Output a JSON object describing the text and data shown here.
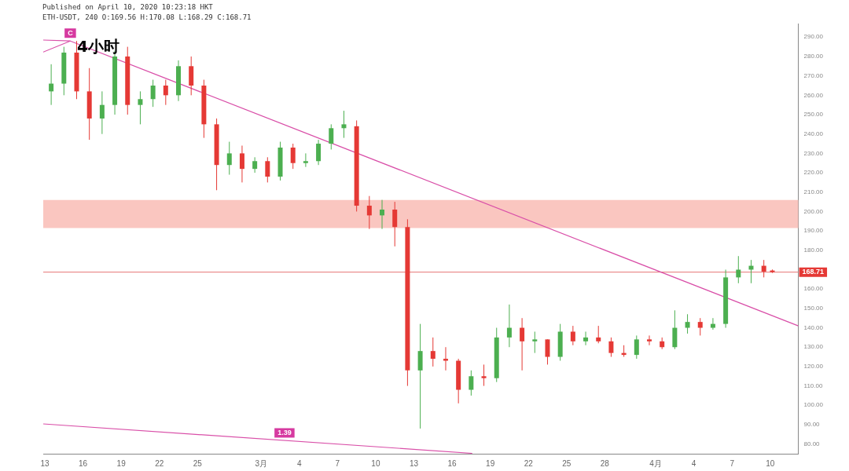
{
  "chart_data": {
    "type": "candlestick",
    "title": "4小时",
    "subtitle": "ETH-USDT, 240 O:169.56 H:170.08 L:168.29 C:168.71",
    "annotations": [
      "Published on April 10, 2020 10:23:18 HKT",
      {
        "text": "C",
        "x": "2020-02-15T00:00",
        "y": 288
      },
      {
        "text": "1.39",
        "x": "2020-03-02T20:00",
        "y": 81.7
      }
    ],
    "x": [
      "2020-02-13T12:00",
      "2020-02-14T12:00",
      "2020-02-15T12:00",
      "2020-02-16T12:00",
      "2020-02-17T12:00",
      "2020-02-18T12:00",
      "2020-02-19T12:00",
      "2020-02-20T12:00",
      "2020-02-21T12:00",
      "2020-02-22T12:00",
      "2020-02-23T12:00",
      "2020-02-24T12:00",
      "2020-02-25T12:00",
      "2020-02-26T12:00",
      "2020-02-27T12:00",
      "2020-02-28T12:00",
      "2020-02-29T12:00",
      "2020-03-01T12:00",
      "2020-03-02T12:00",
      "2020-03-03T12:00",
      "2020-03-04T12:00",
      "2020-03-05T12:00",
      "2020-03-06T12:00",
      "2020-03-07T12:00",
      "2020-03-08T12:00",
      "2020-03-09T12:00",
      "2020-03-10T12:00",
      "2020-03-11T12:00",
      "2020-03-12T12:00",
      "2020-03-13T12:00",
      "2020-03-14T12:00",
      "2020-03-15T12:00",
      "2020-03-16T12:00",
      "2020-03-17T12:00",
      "2020-03-18T12:00",
      "2020-03-19T12:00",
      "2020-03-20T12:00",
      "2020-03-21T12:00",
      "2020-03-22T12:00",
      "2020-03-23T12:00",
      "2020-03-24T12:00",
      "2020-03-25T12:00",
      "2020-03-26T12:00",
      "2020-03-27T12:00",
      "2020-03-28T12:00",
      "2020-03-29T12:00",
      "2020-03-30T12:00",
      "2020-03-31T12:00",
      "2020-04-01T12:00",
      "2020-04-02T12:00",
      "2020-04-03T12:00",
      "2020-04-04T12:00",
      "2020-04-05T12:00",
      "2020-04-06T12:00",
      "2020-04-07T12:00",
      "2020-04-08T12:00",
      "2020-04-09T12:00",
      "2020-04-10T04:00"
    ],
    "ohlc": [
      [
        262,
        276,
        255,
        266
      ],
      [
        266,
        285,
        260,
        282
      ],
      [
        282,
        288,
        258,
        262
      ],
      [
        262,
        274,
        237,
        248
      ],
      [
        248,
        262,
        240,
        255
      ],
      [
        255,
        283,
        250,
        280
      ],
      [
        280,
        285,
        250,
        255
      ],
      [
        255,
        262,
        245,
        258
      ],
      [
        258,
        268,
        254,
        265
      ],
      [
        265,
        268,
        255,
        260
      ],
      [
        260,
        278,
        257,
        275
      ],
      [
        275,
        280,
        260,
        265
      ],
      [
        265,
        268,
        238,
        245
      ],
      [
        245,
        248,
        211,
        224
      ],
      [
        224,
        236,
        219,
        230
      ],
      [
        230,
        234,
        215,
        222
      ],
      [
        222,
        228,
        220,
        226
      ],
      [
        226,
        228,
        215,
        218
      ],
      [
        218,
        236,
        216,
        233
      ],
      [
        233,
        235,
        222,
        225
      ],
      [
        225,
        230,
        223,
        226
      ],
      [
        226,
        237,
        224,
        235
      ],
      [
        235,
        245,
        232,
        243
      ],
      [
        243,
        252,
        238,
        245
      ],
      [
        244,
        247,
        200,
        203
      ],
      [
        203,
        208,
        191,
        198
      ],
      [
        198,
        206,
        191,
        201
      ],
      [
        201,
        205,
        182,
        192
      ],
      [
        192,
        196,
        110,
        118
      ],
      [
        118,
        142,
        88,
        128
      ],
      [
        128,
        135,
        120,
        124
      ],
      [
        124,
        130,
        118,
        123
      ],
      [
        123,
        124,
        101,
        108
      ],
      [
        108,
        118,
        105,
        115
      ],
      [
        115,
        121,
        110,
        114
      ],
      [
        114,
        140,
        112,
        135
      ],
      [
        135,
        152,
        130,
        140
      ],
      [
        140,
        145,
        118,
        133
      ],
      [
        133,
        138,
        127,
        134
      ],
      [
        134,
        134,
        121,
        125
      ],
      [
        125,
        142,
        123,
        138
      ],
      [
        138,
        141,
        131,
        133
      ],
      [
        133,
        138,
        131,
        135
      ],
      [
        135,
        141,
        132,
        133
      ],
      [
        133,
        135,
        125,
        127
      ],
      [
        127,
        131,
        125,
        126
      ],
      [
        126,
        136,
        124,
        134
      ],
      [
        134,
        136,
        131,
        133
      ],
      [
        133,
        135,
        129,
        130
      ],
      [
        130,
        149,
        129,
        140
      ],
      [
        140,
        147,
        137,
        143
      ],
      [
        143,
        145,
        136,
        140
      ],
      [
        140,
        145,
        139,
        142
      ],
      [
        142,
        170,
        140,
        166
      ],
      [
        166,
        177,
        163,
        170
      ],
      [
        170,
        175,
        163,
        172
      ],
      [
        172,
        175,
        166,
        169
      ],
      [
        169.56,
        170.08,
        168.29,
        168.71
      ]
    ],
    "colors": [
      "#4caf50",
      "#4caf50",
      "#e53935",
      "#e53935",
      "#4caf50",
      "#4caf50",
      "#e53935",
      "#4caf50",
      "#4caf50",
      "#e53935",
      "#4caf50",
      "#e53935",
      "#e53935",
      "#e53935",
      "#4caf50",
      "#e53935",
      "#4caf50",
      "#e53935",
      "#4caf50",
      "#e53935",
      "#4caf50",
      "#4caf50",
      "#4caf50",
      "#4caf50",
      "#e53935",
      "#e53935",
      "#4caf50",
      "#e53935",
      "#e53935",
      "#4caf50",
      "#e53935",
      "#e53935",
      "#e53935",
      "#4caf50",
      "#e53935",
      "#4caf50",
      "#4caf50",
      "#e53935",
      "#4caf50",
      "#e53935",
      "#4caf50",
      "#e53935",
      "#4caf50",
      "#e53935",
      "#e53935",
      "#e53935",
      "#4caf50",
      "#e53935",
      "#e53935",
      "#4caf50",
      "#4caf50",
      "#e53935",
      "#4caf50",
      "#4caf50",
      "#4caf50",
      "#4caf50",
      "#e53935",
      "#e53935"
    ],
    "series": [
      {
        "type": "line",
        "color": "#d94fa8",
        "x": [
          "2020-02-12T21:00",
          "2020-02-15T00:00",
          "2020-02-12T21:00",
          "2020-02-15T00:00",
          "2020-04-12T05:00"
        ],
        "values": [
          288.5,
          288,
          282.3,
          288,
          141
        ]
      },
      {
        "type": "line",
        "color": "#d94fa8",
        "x": [
          "2020-02-12T21:00",
          "2020-03-17T14:00"
        ],
        "values": [
          90.4,
          75.2
        ]
      }
    ],
    "bands": [
      {
        "axis": "y",
        "from": 191.5,
        "to": 206,
        "color": "#f9b8b0"
      }
    ],
    "ref_lines": [
      {
        "axis": "y",
        "value": 168.71,
        "label": "168.71",
        "color": "#e57373"
      }
    ],
    "xlim": [
      "2020-02-12T21:00",
      "2020-04-12T05:00"
    ],
    "xticks": [
      {
        "value": "2020-02-13",
        "label": "13"
      },
      {
        "value": "2020-02-16",
        "label": "16"
      },
      {
        "value": "2020-02-19",
        "label": "19"
      },
      {
        "value": "2020-02-22",
        "label": "22"
      },
      {
        "value": "2020-02-25",
        "label": "25"
      },
      {
        "value": "2020-03-01",
        "label": "3月"
      },
      {
        "value": "2020-03-04",
        "label": "4"
      },
      {
        "value": "2020-03-07",
        "label": "7"
      },
      {
        "value": "2020-03-10",
        "label": "10"
      },
      {
        "value": "2020-03-13",
        "label": "13"
      },
      {
        "value": "2020-03-16",
        "label": "16"
      },
      {
        "value": "2020-03-19",
        "label": "19"
      },
      {
        "value": "2020-03-22",
        "label": "22"
      },
      {
        "value": "2020-03-25",
        "label": "25"
      },
      {
        "value": "2020-03-28",
        "label": "28"
      },
      {
        "value": "2020-04-01",
        "label": "4月"
      },
      {
        "value": "2020-04-04",
        "label": "4"
      },
      {
        "value": "2020-04-07",
        "label": "7"
      },
      {
        "value": "2020-04-10",
        "label": "10"
      }
    ],
    "ylim": [
      75,
      297
    ],
    "yticks": [
      {
        "value": 80,
        "label": "80.00"
      },
      {
        "value": 90,
        "label": "90.00"
      },
      {
        "value": 100,
        "label": "100.00"
      },
      {
        "value": 110,
        "label": "110.00"
      },
      {
        "value": 120,
        "label": "120.00"
      },
      {
        "value": 130,
        "label": "130.00"
      },
      {
        "value": 140,
        "label": "140.00"
      },
      {
        "value": 150,
        "label": "150.00"
      },
      {
        "value": 160,
        "label": "160.00"
      },
      {
        "value": 180,
        "label": "180.00"
      },
      {
        "value": 190,
        "label": "190.00"
      },
      {
        "value": 200,
        "label": "200.00"
      },
      {
        "value": 210,
        "label": "210.00"
      },
      {
        "value": 220,
        "label": "220.00"
      },
      {
        "value": 230,
        "label": "230.00"
      },
      {
        "value": 240,
        "label": "240.00"
      },
      {
        "value": 250,
        "label": "250.00"
      },
      {
        "value": 260,
        "label": "260.00"
      },
      {
        "value": 270,
        "label": "270.00"
      },
      {
        "value": 280,
        "label": "280.00"
      },
      {
        "value": 290,
        "label": "290.00"
      }
    ],
    "grid": false,
    "legend": false
  }
}
